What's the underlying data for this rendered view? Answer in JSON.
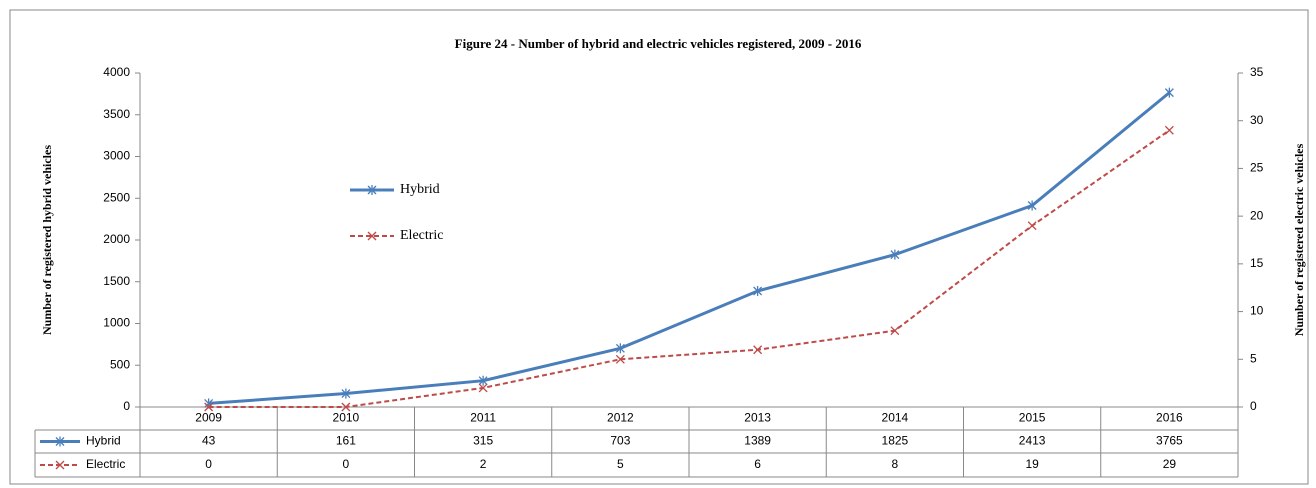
{
  "chart_data": {
    "type": "line",
    "title": "Figure 24 - Number of hybrid and electric vehicles registered, 2009 - 2016",
    "y_label": "Number of registered hybrid vehicles",
    "y2_label": "Number of registered electric vehicles",
    "categories": [
      "2009",
      "2010",
      "2011",
      "2012",
      "2013",
      "2014",
      "2015",
      "2016"
    ],
    "series": [
      {
        "name": "Hybrid",
        "color": "#4a7ebb",
        "values": [
          43,
          161,
          315,
          703,
          1389,
          1825,
          2413,
          3765
        ]
      },
      {
        "name": "Electric",
        "color": "#be4b48",
        "axis": "y2",
        "values": [
          0,
          0,
          2,
          5,
          6,
          8,
          19,
          29
        ]
      }
    ],
    "ylim": [
      0,
      4000
    ],
    "yticks": [
      0,
      500,
      1000,
      1500,
      2000,
      2500,
      3000,
      3500,
      4000
    ],
    "y2lim": [
      0,
      35
    ],
    "y2ticks": [
      0,
      5,
      10,
      15,
      20,
      25,
      30,
      35
    ],
    "data_table": true
  }
}
